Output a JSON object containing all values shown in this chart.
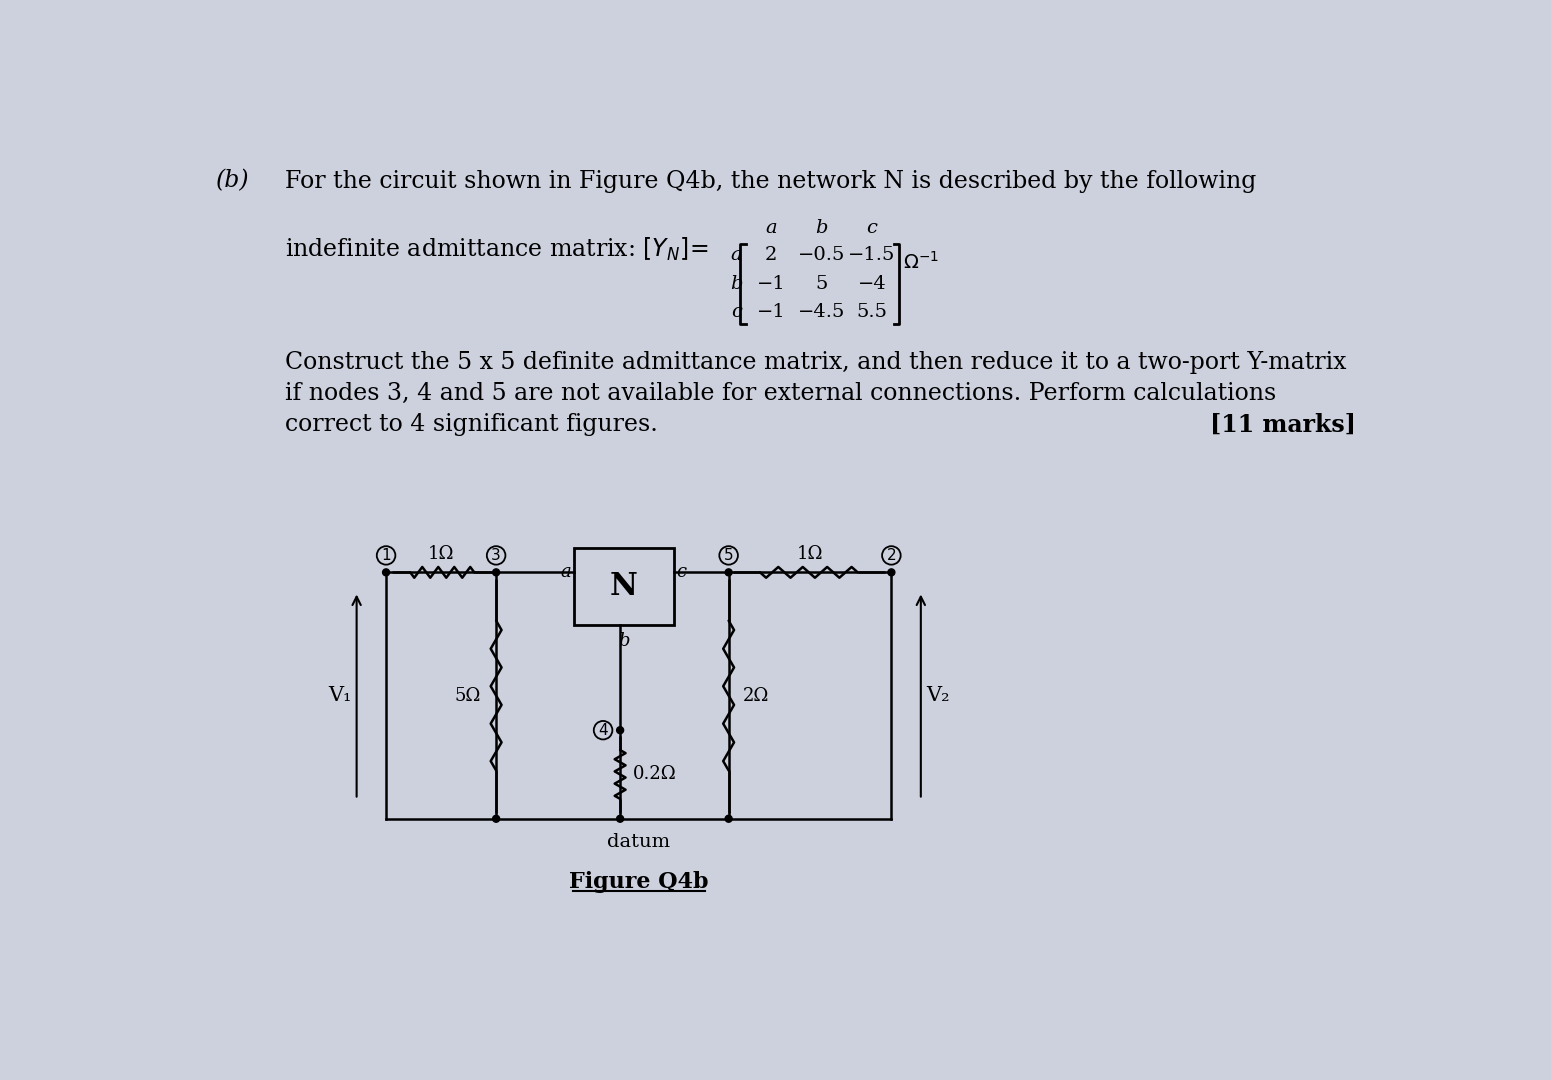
{
  "bg_color": "#cdd1de",
  "text_color": "#1a1a1a",
  "title_b": "(b)",
  "title_main": "For the circuit shown in Figure Q4b, the network N is described by the following",
  "matrix_intro": "indefinite admittance matrix: $[Y_N]=$",
  "matrix_rows": [
    [
      "2",
      "−0.5",
      "−1.5"
    ],
    [
      "−1",
      "5",
      "−4"
    ],
    [
      "−1",
      "−4.5",
      "5.5"
    ]
  ],
  "matrix_row_labels": [
    "a",
    "b",
    "c"
  ],
  "matrix_col_labels": [
    "a",
    "b",
    "c"
  ],
  "body1": "Construct the 5 x 5 definite admittance matrix, and then reduce it to a two-port Y-matrix",
  "body2": "if nodes 3, 4 and 5 are not available for external connections. Perform calculations",
  "body3": "correct to 4 significant figures.",
  "marks": "[11 marks]",
  "fig_label": "Figure Q4b",
  "R1_label": "1Ω",
  "R2_label": "1Ω",
  "R3_label": "5Ω",
  "R4_label": "2Ω",
  "R5_label": "0.2Ω",
  "V1_label": "V₁",
  "V2_label": "V₂",
  "datum_label": "datum"
}
